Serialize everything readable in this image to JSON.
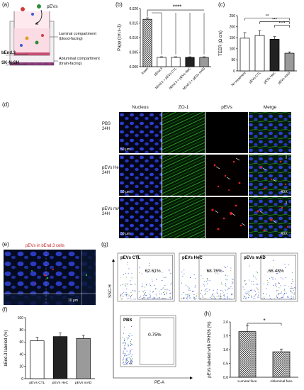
{
  "panels": {
    "a": "(a)",
    "b": "(b)",
    "c": "(c)",
    "d": "(d)",
    "e": "(e)",
    "f": "(f)",
    "g": "(g)",
    "h": "(h)"
  },
  "schematic": {
    "pevs": "pEVs",
    "luminal": "Luminal compartment",
    "luminal_sub": "(blood-facing)",
    "abluminal": "Abluminal compartment",
    "abluminal_sub": "(brain-facing)",
    "bend3": "bEnd.3",
    "sknsh": "SK-N-SH"
  },
  "chart_b": {
    "type": "bar",
    "ylabel": "Papp (cm.s-1)",
    "yticks": [
      "0.000",
      "0.005",
      "0.010",
      "0.015",
      "0.020"
    ],
    "ylim": [
      0,
      0.02
    ],
    "categories": [
      "Insert",
      "bEnd.3",
      "bEnd.3 + pEVs CTL",
      "bEnd.3 + pEVs HeC",
      "bEnd.3 + pEVs mAD"
    ],
    "values": [
      0.0163,
      0.0032,
      0.0032,
      0.0032,
      0.0032
    ],
    "errors": [
      0.0005,
      0.0002,
      0.0002,
      0.0002,
      0.0002
    ],
    "fills": [
      "hatch",
      "#ffffff",
      "#ffffff",
      "#222222",
      "#9a9a9a"
    ],
    "significance": "****"
  },
  "chart_c": {
    "type": "bar",
    "ylabel": "TEER (Ω cm)",
    "yticks": [
      "0",
      "50",
      "100",
      "150",
      "200",
      "250"
    ],
    "ylim": [
      0,
      250
    ],
    "categories": [
      "No treatment",
      "pEVs CTL",
      "pEVs HeC",
      "pEVs mAD"
    ],
    "values": [
      148,
      160,
      143,
      80
    ],
    "errors": [
      25,
      22,
      12,
      6
    ],
    "fills": [
      "#ffffff",
      "#ffffff",
      "#222222",
      "#9a9a9a"
    ],
    "sig": [
      "**",
      "***",
      "****"
    ]
  },
  "panel_d": {
    "columns": [
      "Nucleus",
      "ZO-1",
      "pEVs",
      "Merge"
    ],
    "rows": [
      {
        "l1": "PBS",
        "l2": "24H"
      },
      {
        "l1": "pEVs HeC",
        "l2": "24H"
      },
      {
        "l1": "pEVs mAD",
        "l2": "24H"
      }
    ],
    "scale": "50 μm",
    "mag": "40X"
  },
  "panel_e": {
    "title": "pEVs in bEnd.3 cells",
    "scale": "10 μm"
  },
  "chart_f": {
    "type": "bar",
    "ylabel": "bEnd.3 labeled (%)",
    "yticks": [
      "0",
      "20",
      "40",
      "60",
      "80",
      "100"
    ],
    "ylim": [
      0,
      100
    ],
    "categories": [
      "pEVs CTL",
      "pEVs HeC",
      "pEVs mAD"
    ],
    "values": [
      62,
      69,
      66
    ],
    "errors": [
      6,
      6,
      5
    ],
    "fills": [
      "#ffffff",
      "#222222",
      "#9a9a9a"
    ]
  },
  "panel_g": {
    "plots": [
      {
        "label": "pEVs CTL",
        "pct": "62.61%"
      },
      {
        "label": "pEVs HeC",
        "pct": "68.76%"
      },
      {
        "label": "pEVs mAD",
        "pct": "66.48%"
      },
      {
        "label": "PBS",
        "pct": "0.75%"
      }
    ],
    "ylabel": "SSC-H",
    "xlabel": "PE-A"
  },
  "chart_h": {
    "type": "bar",
    "ylabel": "pEVs labeled with PKH26 (%)",
    "yticks": [
      "0.0",
      "0.5",
      "1.0",
      "1.5",
      "2.0"
    ],
    "ylim": [
      0,
      2.0
    ],
    "categories": [
      "Luminal face",
      "Abluminal face"
    ],
    "values": [
      1.65,
      0.92
    ],
    "errors": [
      0.22,
      0.1
    ],
    "fills": [
      "hatch",
      "hatch"
    ],
    "significance": "*"
  }
}
